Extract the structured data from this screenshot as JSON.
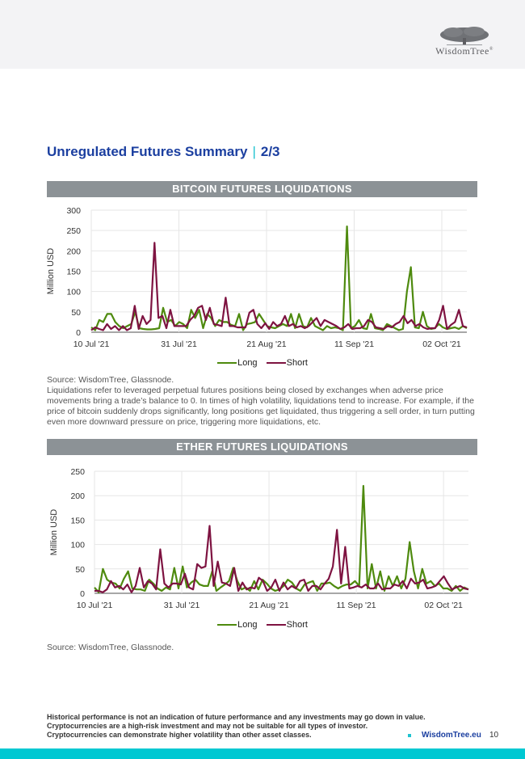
{
  "header": {
    "logo_text": "WisdomTree",
    "logo_mark": "®"
  },
  "page": {
    "title": "Unregulated Futures Summary",
    "title_separator": "|",
    "page_of": "2/3",
    "page_number": "10"
  },
  "colors": {
    "long": "#4e8a0e",
    "short": "#7e1341",
    "title_blue": "#1b3fa0",
    "accent_cyan": "#00c8d2",
    "banner_gray": "#8c9296"
  },
  "chart_data": [
    {
      "type": "line",
      "title": "BITCOIN FUTURES LIQUIDATIONS",
      "xlabel": "",
      "ylabel": "Million USD",
      "ylim": [
        0,
        300
      ],
      "yticks": [
        0,
        50,
        100,
        150,
        200,
        250,
        300
      ],
      "xtick_labels": [
        "10 Jul '21",
        "31 Jul '21",
        "21 Aug '21",
        "11 Sep '21",
        "02 Oct '21"
      ],
      "xtick_days": [
        0,
        21,
        42,
        63,
        84
      ],
      "x_days": 90,
      "grid": true,
      "legend": "bottom-center",
      "series": [
        {
          "name": "Long",
          "values": [
            12,
            5,
            30,
            25,
            45,
            45,
            25,
            15,
            10,
            15,
            20,
            50,
            10,
            8,
            7,
            7,
            8,
            10,
            60,
            25,
            30,
            15,
            25,
            20,
            10,
            55,
            35,
            55,
            10,
            45,
            35,
            15,
            30,
            25,
            25,
            18,
            15,
            45,
            5,
            20,
            22,
            25,
            45,
            30,
            15,
            12,
            10,
            15,
            20,
            15,
            45,
            10,
            45,
            15,
            12,
            35,
            15,
            10,
            5,
            15,
            10,
            12,
            10,
            5,
            260,
            10,
            15,
            30,
            10,
            8,
            45,
            10,
            8,
            5,
            20,
            15,
            10,
            5,
            8,
            100,
            160,
            12,
            10,
            50,
            15,
            8,
            10,
            20,
            12,
            8,
            10,
            12,
            8,
            15,
            10
          ],
          "color": "#4e8a0e"
        },
        {
          "name": "Short",
          "values": [
            5,
            12,
            8,
            5,
            20,
            8,
            15,
            5,
            15,
            5,
            10,
            65,
            8,
            40,
            20,
            30,
            220,
            35,
            40,
            10,
            55,
            15,
            15,
            15,
            15,
            30,
            40,
            60,
            65,
            30,
            60,
            20,
            18,
            15,
            85,
            15,
            15,
            12,
            12,
            12,
            48,
            55,
            20,
            10,
            22,
            8,
            25,
            15,
            20,
            40,
            15,
            20,
            12,
            15,
            10,
            15,
            25,
            35,
            15,
            30,
            25,
            20,
            15,
            8,
            12,
            20,
            8,
            10,
            10,
            15,
            30,
            25,
            12,
            10,
            8,
            15,
            12,
            20,
            25,
            40,
            22,
            30,
            15,
            20,
            12,
            8,
            10,
            10,
            30,
            65,
            8,
            18,
            25,
            55,
            15,
            12
          ],
          "color": "#7e1341"
        }
      ]
    },
    {
      "type": "line",
      "title": "ETHER FUTURES LIQUIDATIONS",
      "xlabel": "",
      "ylabel": "Million USD",
      "ylim": [
        0,
        250
      ],
      "yticks": [
        0,
        50,
        100,
        150,
        200,
        250
      ],
      "xtick_labels": [
        "10 Jul '21",
        "31 Jul '21",
        "21 Aug '21",
        "11 Sep '21",
        "02 Oct '21"
      ],
      "xtick_days": [
        0,
        21,
        42,
        63,
        84
      ],
      "x_days": 90,
      "grid": true,
      "legend": "bottom-center",
      "series": [
        {
          "name": "Long",
          "values": [
            12,
            2,
            50,
            28,
            22,
            20,
            10,
            30,
            45,
            10,
            8,
            8,
            5,
            28,
            20,
            10,
            5,
            12,
            8,
            52,
            10,
            55,
            12,
            22,
            28,
            18,
            15,
            15,
            45,
            5,
            12,
            18,
            25,
            52,
            25,
            8,
            12,
            5,
            25,
            8,
            28,
            20,
            10,
            5,
            8,
            15,
            28,
            22,
            10,
            5,
            18,
            22,
            25,
            5,
            20,
            20,
            22,
            15,
            10,
            15,
            18,
            18,
            25,
            15,
            220,
            10,
            60,
            10,
            45,
            5,
            35,
            15,
            35,
            10,
            30,
            105,
            45,
            10,
            50,
            20,
            25,
            15,
            20,
            10,
            10,
            5,
            15,
            5,
            12,
            8
          ],
          "color": "#4e8a0e"
        },
        {
          "name": "Short",
          "values": [
            5,
            5,
            2,
            8,
            25,
            12,
            15,
            8,
            18,
            2,
            15,
            52,
            12,
            25,
            20,
            8,
            90,
            20,
            12,
            20,
            20,
            18,
            40,
            12,
            8,
            60,
            52,
            55,
            138,
            15,
            65,
            22,
            20,
            15,
            52,
            5,
            22,
            8,
            12,
            10,
            32,
            25,
            5,
            12,
            28,
            5,
            22,
            8,
            15,
            10,
            25,
            28,
            5,
            15,
            15,
            8,
            20,
            30,
            55,
            130,
            20,
            95,
            10,
            12,
            15,
            12,
            18,
            10,
            10,
            20,
            8,
            10,
            10,
            18,
            15,
            25,
            10,
            30,
            20,
            22,
            28,
            10,
            12,
            15,
            25,
            35,
            20,
            8,
            12,
            15,
            10,
            8
          ],
          "color": "#7e1341"
        }
      ]
    }
  ],
  "bitcoin_section": {
    "banner": "BITCOIN FUTURES LIQUIDATIONS",
    "legend_long": "Long",
    "legend_short": "Short",
    "source": "Source: WisdomTree, Glassnode.",
    "description": "Liquidations refer to leveraged perpetual futures positions being closed by exchanges when adverse price movements bring a trade’s balance to 0. In times of high volatility, liquidations tend to increase. For example, if the price of bitcoin suddenly drops significantly, long positions get liquidated, thus triggering a sell order, in turn putting even more downward pressure on price, triggering more liquidations, etc."
  },
  "ether_section": {
    "banner": "ETHER FUTURES LIQUIDATIONS",
    "legend_long": "Long",
    "legend_short": "Short",
    "source": "Source: WisdomTree, Glassnode."
  },
  "footer": {
    "disclaimer_1": "Historical performance is not an indication of future performance and any investments may go down in value.",
    "disclaimer_2": "Cryptocurrencies are a high-risk investment and may not be suitable for all types of investor.",
    "disclaimer_3": "Cryptocurrencies can demonstrate higher volatility than other asset classes.",
    "website": "WisdomTree.eu"
  }
}
